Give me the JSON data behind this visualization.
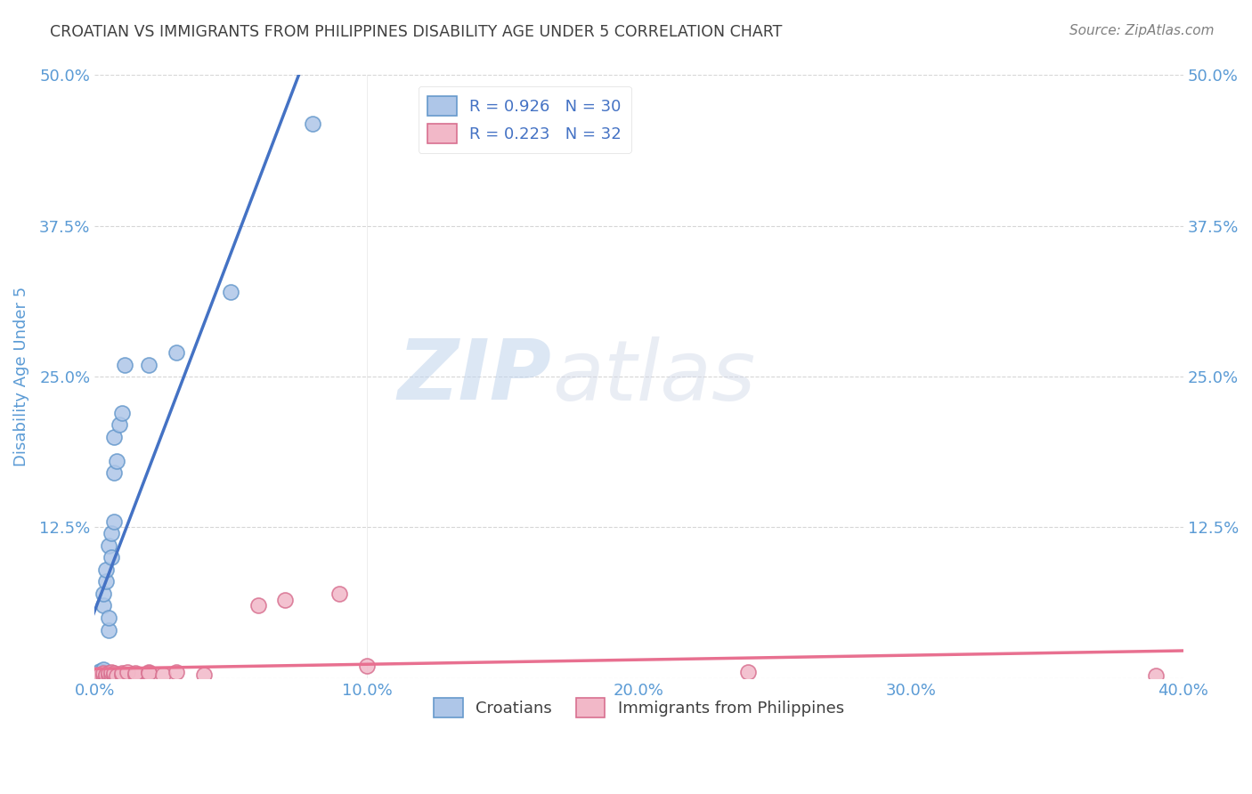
{
  "title": "CROATIAN VS IMMIGRANTS FROM PHILIPPINES DISABILITY AGE UNDER 5 CORRELATION CHART",
  "source": "Source: ZipAtlas.com",
  "ylabel": "Disability Age Under 5",
  "watermark": "ZIPatlas",
  "xlim": [
    0.0,
    0.4
  ],
  "ylim": [
    0.0,
    0.5
  ],
  "xtick_vals": [
    0.0,
    0.1,
    0.2,
    0.3,
    0.4
  ],
  "xtick_labels": [
    "0.0%",
    "10.0%",
    "20.0%",
    "30.0%",
    "40.0%"
  ],
  "ytick_vals": [
    0.0,
    0.125,
    0.25,
    0.375,
    0.5
  ],
  "ytick_labels": [
    "",
    "12.5%",
    "25.0%",
    "37.5%",
    "50.0%"
  ],
  "grid_color": "#cccccc",
  "bg_color": "#ffffff",
  "blue_line_color": "#4472c4",
  "blue_scatter_face": "#aec6e8",
  "blue_scatter_edge": "#6699cc",
  "pink_line_color": "#e87090",
  "pink_scatter_face": "#f2b8c8",
  "pink_scatter_edge": "#d87090",
  "title_color": "#404040",
  "axis_label_color": "#5b9bd5",
  "source_color": "#808080",
  "legend_text_color": "#4472c4",
  "croatian_label": "Croatians",
  "philippines_label": "Immigrants from Philippines",
  "r_croatian": "R = 0.926",
  "n_croatian": "N = 30",
  "r_philippines": "R = 0.223",
  "n_philippines": "N = 32",
  "croatians_x": [
    0.0,
    0.001,
    0.001,
    0.001,
    0.002,
    0.002,
    0.002,
    0.002,
    0.003,
    0.003,
    0.003,
    0.003,
    0.004,
    0.004,
    0.005,
    0.005,
    0.005,
    0.006,
    0.006,
    0.007,
    0.007,
    0.007,
    0.008,
    0.009,
    0.01,
    0.011,
    0.02,
    0.03,
    0.05,
    0.08
  ],
  "croatians_y": [
    0.0,
    0.001,
    0.002,
    0.003,
    0.003,
    0.004,
    0.005,
    0.006,
    0.005,
    0.007,
    0.06,
    0.07,
    0.08,
    0.09,
    0.04,
    0.05,
    0.11,
    0.1,
    0.12,
    0.13,
    0.17,
    0.2,
    0.18,
    0.21,
    0.22,
    0.26,
    0.26,
    0.27,
    0.32,
    0.46
  ],
  "philippines_x": [
    0.0,
    0.001,
    0.001,
    0.002,
    0.002,
    0.003,
    0.003,
    0.004,
    0.004,
    0.005,
    0.005,
    0.006,
    0.006,
    0.007,
    0.007,
    0.008,
    0.01,
    0.01,
    0.012,
    0.015,
    0.015,
    0.02,
    0.02,
    0.025,
    0.03,
    0.04,
    0.06,
    0.07,
    0.09,
    0.1,
    0.24,
    0.39
  ],
  "philippines_y": [
    0.0,
    0.001,
    0.002,
    0.001,
    0.003,
    0.002,
    0.004,
    0.002,
    0.003,
    0.002,
    0.004,
    0.003,
    0.005,
    0.003,
    0.004,
    0.002,
    0.003,
    0.004,
    0.005,
    0.003,
    0.004,
    0.005,
    0.004,
    0.003,
    0.005,
    0.003,
    0.06,
    0.065,
    0.07,
    0.01,
    0.005,
    0.002
  ]
}
